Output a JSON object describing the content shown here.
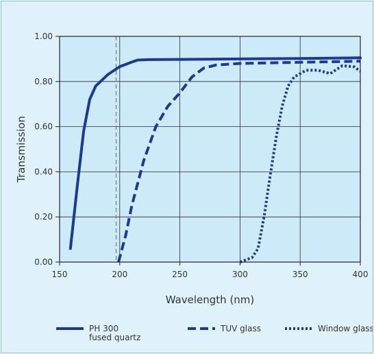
{
  "chart_data": {
    "type": "line",
    "title": "",
    "xlabel": "Wavelength (nm)",
    "ylabel": "Transmission",
    "xlim": [
      150,
      400
    ],
    "ylim": [
      0,
      1
    ],
    "x_ticks": [
      "150",
      "200",
      "250",
      "300",
      "350",
      "400"
    ],
    "y_ticks": [
      "0.00",
      "0.20",
      "0.40",
      "0.60",
      "0.80",
      "1.00"
    ],
    "grid": true,
    "reference_line_x": 197,
    "legend_position": "bottom",
    "series": [
      {
        "name": "PH 300 fused quartz",
        "name_lines": [
          "PH 300",
          "fused quartz"
        ],
        "style": "solid",
        "color": "#1c3a94",
        "points": [
          [
            159,
            0.06
          ],
          [
            165,
            0.35
          ],
          [
            170,
            0.58
          ],
          [
            175,
            0.72
          ],
          [
            180,
            0.78
          ],
          [
            190,
            0.83
          ],
          [
            200,
            0.866
          ],
          [
            210,
            0.886
          ],
          [
            215,
            0.895
          ],
          [
            225,
            0.897
          ],
          [
            250,
            0.898
          ],
          [
            300,
            0.9
          ],
          [
            350,
            0.902
          ],
          [
            400,
            0.905
          ]
        ]
      },
      {
        "name": "TUV glass",
        "style": "dashed",
        "color": "#1c3a94",
        "points": [
          [
            199,
            0.0
          ],
          [
            205,
            0.12
          ],
          [
            210,
            0.25
          ],
          [
            220,
            0.45
          ],
          [
            230,
            0.6
          ],
          [
            240,
            0.69
          ],
          [
            250,
            0.75
          ],
          [
            260,
            0.82
          ],
          [
            270,
            0.86
          ],
          [
            280,
            0.873
          ],
          [
            300,
            0.88
          ],
          [
            350,
            0.885
          ],
          [
            400,
            0.89
          ]
        ]
      },
      {
        "name": "Window glass",
        "style": "dotted",
        "color": "#1c3a94",
        "points": [
          [
            300,
            0.0
          ],
          [
            310,
            0.02
          ],
          [
            315,
            0.06
          ],
          [
            320,
            0.2
          ],
          [
            325,
            0.38
          ],
          [
            330,
            0.55
          ],
          [
            335,
            0.69
          ],
          [
            340,
            0.78
          ],
          [
            345,
            0.82
          ],
          [
            355,
            0.85
          ],
          [
            365,
            0.85
          ],
          [
            375,
            0.835
          ],
          [
            385,
            0.87
          ],
          [
            395,
            0.865
          ],
          [
            400,
            0.845
          ]
        ]
      }
    ]
  }
}
